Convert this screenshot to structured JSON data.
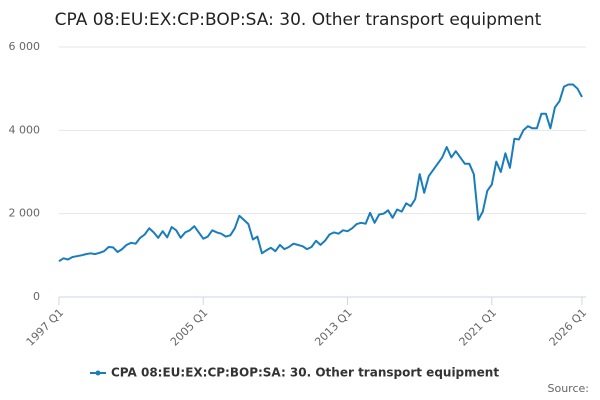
{
  "chart_data": {
    "type": "line",
    "title": "CPA 08:EU:EX:CP:BOP:SA: 30. Other transport equipment",
    "source": "Source:",
    "categories": [
      "1997 Q1",
      null,
      null,
      null,
      null,
      null,
      null,
      null,
      null,
      null,
      null,
      null,
      null,
      null,
      null,
      null,
      null,
      null,
      null,
      null,
      null,
      null,
      null,
      null,
      null,
      null,
      null,
      null,
      null,
      null,
      null,
      null,
      "2005 Q1",
      null,
      null,
      null,
      null,
      null,
      null,
      null,
      null,
      null,
      null,
      null,
      null,
      null,
      null,
      null,
      null,
      null,
      null,
      null,
      null,
      null,
      null,
      null,
      null,
      null,
      null,
      null,
      null,
      null,
      null,
      null,
      "2013 Q1",
      null,
      null,
      null,
      null,
      null,
      null,
      null,
      null,
      null,
      null,
      null,
      null,
      null,
      null,
      null,
      null,
      null,
      null,
      null,
      null,
      null,
      null,
      null,
      null,
      null,
      null,
      null,
      null,
      null,
      null,
      null,
      "2021 Q1",
      null,
      null,
      null,
      null,
      null,
      null,
      null,
      null,
      null,
      null,
      null,
      null,
      null,
      null,
      null,
      null,
      null,
      null,
      null,
      "2026 Q1"
    ],
    "series": [
      {
        "name": "CPA 08:EU:EX:CP:BOP:SA: 30. Other transport equipment",
        "color": "#1a7dbb",
        "values": [
          860,
          930,
          900,
          960,
          980,
          1000,
          1030,
          1050,
          1030,
          1060,
          1100,
          1200,
          1190,
          1080,
          1150,
          1250,
          1300,
          1280,
          1420,
          1500,
          1650,
          1550,
          1420,
          1580,
          1430,
          1680,
          1600,
          1420,
          1550,
          1600,
          1700,
          1550,
          1400,
          1450,
          1600,
          1550,
          1520,
          1450,
          1480,
          1650,
          1950,
          1850,
          1750,
          1380,
          1450,
          1050,
          1120,
          1180,
          1100,
          1250,
          1150,
          1200,
          1280,
          1250,
          1220,
          1150,
          1200,
          1350,
          1250,
          1350,
          1500,
          1550,
          1520,
          1600,
          1580,
          1650,
          1750,
          1780,
          1760,
          2020,
          1780,
          1980,
          2000,
          2080,
          1900,
          2100,
          2050,
          2250,
          2180,
          2350,
          2950,
          2500,
          2900,
          3050,
          3200,
          3350,
          3600,
          3350,
          3500,
          3350,
          3200,
          3200,
          2950,
          1850,
          2050,
          2550,
          2700,
          3250,
          3000,
          3450,
          3100,
          3800,
          3780,
          4000,
          4100,
          4050,
          4050,
          4400,
          4400,
          4050,
          4550,
          4700,
          5050,
          5100,
          5100,
          5000,
          4800
        ]
      }
    ],
    "ylim": [
      0,
      6000
    ],
    "yticks": [
      0,
      {
        "value": 2000,
        "label": "2 000"
      },
      {
        "value": 4000,
        "label": "4 000"
      },
      {
        "value": 6000,
        "label": "6 000"
      }
    ],
    "grid": true
  }
}
